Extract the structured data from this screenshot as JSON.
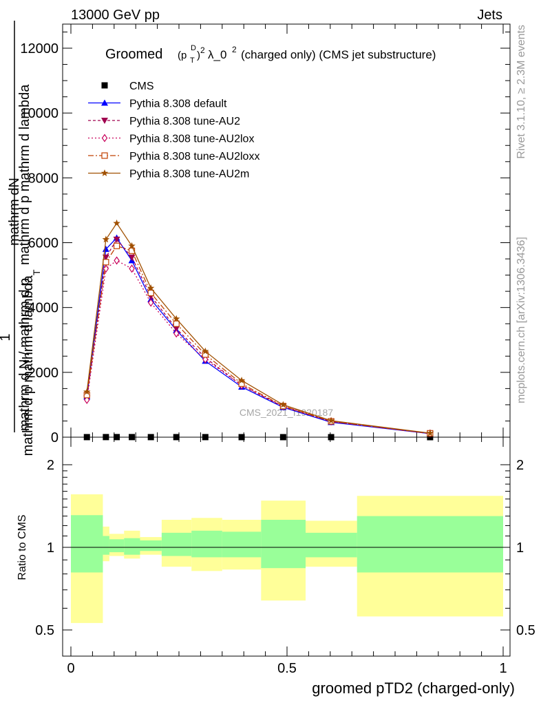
{
  "header": {
    "left": "13000 GeV pp",
    "right": "Jets"
  },
  "side_labels": {
    "rivet": "Rivet 3.1.10, ≥ 2.3M events",
    "mcplots": "mcplots.cern.ch [arXiv:1306.3436]"
  },
  "watermark": "CMS_2021_I1920187",
  "chart_data": [
    {
      "type": "line",
      "title_parts": [
        "Groomed",
        "(p",
        "T",
        "D",
        ")",
        "2",
        "λ_0",
        "2",
        " (charged only) (CMS jet substructure)"
      ],
      "ylabel_top": "mathrm dN",
      "ylabel_top2": "mathrm d p mathrm d lambda",
      "ylabel_one": "1",
      "ylabel_bottom": "mathrm d N / mathrm d p",
      "ylabel_bottom_sub": "T",
      "ylabel_bottom_tail": "mathrm d p mathrm d lambda",
      "xlim": [
        0,
        1
      ],
      "ylim": [
        0,
        13000
      ],
      "yticks": [
        0,
        2000,
        4000,
        6000,
        8000,
        10000,
        12000
      ],
      "ytick_labels": [
        "0",
        "2000",
        "4000",
        "6000",
        "8000",
        "10000",
        "12000"
      ],
      "x": [
        0.037,
        0.081,
        0.106,
        0.141,
        0.185,
        0.244,
        0.311,
        0.395,
        0.491,
        0.602,
        0.831
      ],
      "series": [
        {
          "name": "CMS",
          "color": "#000000",
          "marker": "square",
          "dash": "",
          "values": [
            2,
            3,
            3,
            3,
            2,
            2,
            2,
            1,
            1,
            1,
            0
          ]
        },
        {
          "name": "Pythia 8.308 default",
          "color": "#0000ff",
          "marker": "triangle-up",
          "dash": "",
          "values": [
            1250,
            5800,
            6150,
            5450,
            4250,
            3300,
            2350,
            1550,
            920,
            460,
            110
          ]
        },
        {
          "name": "Pythia 8.308 tune-AU2",
          "color": "#a0004f",
          "marker": "triangle-down",
          "dash": "4,3",
          "values": [
            1200,
            5550,
            6100,
            5550,
            4350,
            3350,
            2450,
            1600,
            940,
            480,
            110
          ]
        },
        {
          "name": "Pythia 8.308 tune-AU2lox",
          "color": "#c8005a",
          "marker": "diamond-open",
          "dash": "2,3",
          "values": [
            1150,
            5200,
            5450,
            5200,
            4150,
            3200,
            2400,
            1600,
            960,
            490,
            115
          ]
        },
        {
          "name": "Pythia 8.308 tune-AU2loxx",
          "color": "#c04000",
          "marker": "square-open",
          "dash": "8,3,2,3",
          "values": [
            1300,
            5400,
            5900,
            5750,
            4450,
            3500,
            2550,
            1650,
            960,
            490,
            120
          ]
        },
        {
          "name": "Pythia 8.308 tune-AU2m",
          "color": "#a05000",
          "marker": "star",
          "dash": "",
          "values": [
            1400,
            6100,
            6600,
            5900,
            4600,
            3650,
            2650,
            1750,
            1000,
            510,
            125
          ]
        }
      ]
    },
    {
      "type": "area",
      "ylabel": "Ratio to CMS",
      "xlabel": "groomed pTD2 (charged-only)",
      "xlim": [
        0,
        1
      ],
      "ylim": [
        0.35,
        2.25
      ],
      "yticks": [
        0.5,
        1,
        2
      ],
      "ytick_labels": [
        "0.5",
        "1",
        "2"
      ],
      "xticks": [
        0,
        0.5,
        1
      ],
      "xtick_labels": [
        "0",
        "0.5",
        "1"
      ],
      "reference_line": 1,
      "bins": [
        [
          0,
          0.074
        ],
        [
          0.074,
          0.089
        ],
        [
          0.089,
          0.123
        ],
        [
          0.123,
          0.16
        ],
        [
          0.16,
          0.21
        ],
        [
          0.21,
          0.279
        ],
        [
          0.279,
          0.35
        ],
        [
          0.35,
          0.44
        ],
        [
          0.44,
          0.543
        ],
        [
          0.543,
          0.662
        ],
        [
          0.662,
          1.0
        ]
      ],
      "bands": [
        {
          "name": "yellow",
          "color": "#ffff99",
          "lower": [
            0.53,
            0.89,
            0.93,
            0.91,
            0.94,
            0.85,
            0.82,
            0.83,
            0.64,
            0.85,
            0.56
          ],
          "upper": [
            1.56,
            1.19,
            1.12,
            1.15,
            1.09,
            1.26,
            1.28,
            1.26,
            1.48,
            1.25,
            1.54
          ]
        },
        {
          "name": "green",
          "color": "#99ff99",
          "lower": [
            0.81,
            0.94,
            0.96,
            0.94,
            0.97,
            0.93,
            0.92,
            0.92,
            0.84,
            0.92,
            0.81
          ],
          "upper": [
            1.31,
            1.1,
            1.07,
            1.08,
            1.06,
            1.13,
            1.15,
            1.14,
            1.26,
            1.13,
            1.3
          ]
        }
      ]
    }
  ]
}
